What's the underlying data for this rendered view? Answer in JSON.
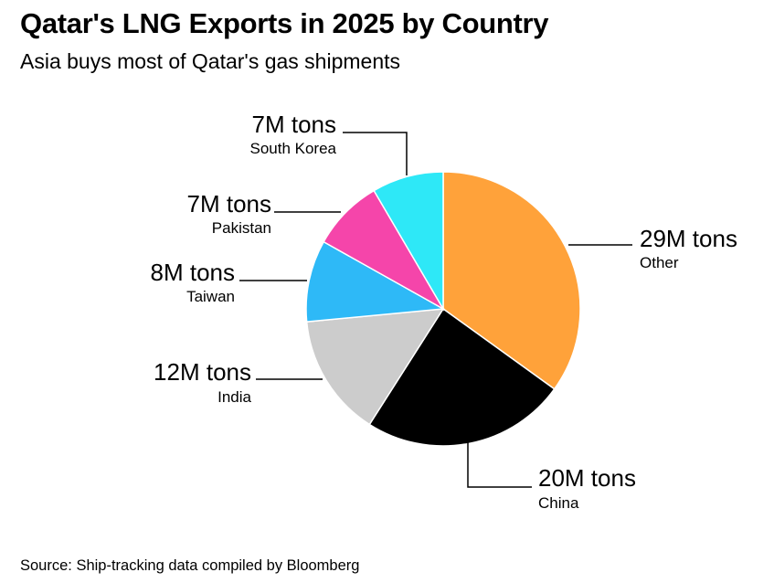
{
  "title": "Qatar's LNG Exports in 2025 by Country",
  "subtitle": "Asia buys most of Qatar's gas shipments",
  "source": "Source: Ship-tracking data compiled by Bloomberg",
  "chart_data": {
    "type": "pie",
    "title": "Qatar's LNG Exports in 2025 by Country",
    "subtitle": "Asia buys most of Qatar's gas shipments",
    "unit": "M tons",
    "start": "top, clockwise",
    "slices": [
      {
        "name": "Other",
        "value": 29,
        "label": "29M tons",
        "color": "#FFA23A"
      },
      {
        "name": "China",
        "value": 20,
        "label": "20M tons",
        "color": "#000000"
      },
      {
        "name": "India",
        "value": 12,
        "label": "12M tons",
        "color": "#CCCCCC"
      },
      {
        "name": "Taiwan",
        "value": 8,
        "label": "8M tons",
        "color": "#2EB9F7"
      },
      {
        "name": "Pakistan",
        "value": 7,
        "label": "7M tons",
        "color": "#F545AA"
      },
      {
        "name": "South Korea",
        "value": 7,
        "label": "7M tons",
        "color": "#2EE8F7"
      }
    ]
  }
}
